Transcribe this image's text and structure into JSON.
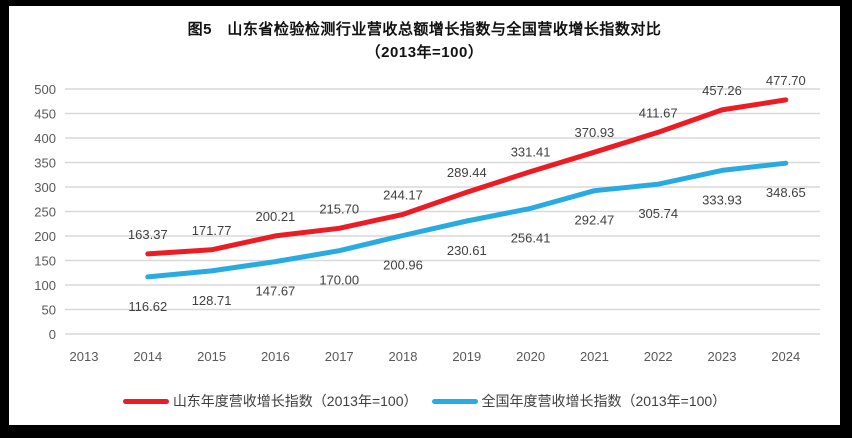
{
  "title": {
    "line1": "图5　山东省检验检测行业营收总额增长指数与全国营收增长指数对比",
    "line2": "（2013年=100）"
  },
  "colors": {
    "background_frame": "#000000",
    "canvas": "#ffffff",
    "gridline": "#d9d9d9",
    "tick_text": "#595959",
    "data_label_text": "#404040",
    "shandong_red": "#ec1c24",
    "national_blue": "#29abe2"
  },
  "chart_data": {
    "type": "line",
    "title": "图5　山东省检验检测行业营收总额增长指数与全国营收增长指数对比（2013年=100）",
    "categories": [
      "2013",
      "2014",
      "2015",
      "2016",
      "2017",
      "2018",
      "2019",
      "2020",
      "2021",
      "2022",
      "2023",
      "2024"
    ],
    "yticks": [
      0,
      50,
      100,
      150,
      200,
      250,
      300,
      350,
      400,
      450,
      500
    ],
    "ylim": [
      0,
      500
    ],
    "grid": "horizontal",
    "legend_position": "bottom",
    "data_labels": true,
    "series": [
      {
        "name": "山东年度营收增长指数（2013年=100）",
        "color": "#ec1c24",
        "label_position": "above",
        "values": [
          null,
          163.37,
          171.77,
          200.21,
          215.7,
          244.17,
          289.44,
          331.41,
          370.93,
          411.67,
          457.26,
          477.7
        ],
        "labels": [
          null,
          "163.37",
          "171.77",
          "200.21",
          "215.70",
          "244.17",
          "289.44",
          "331.41",
          "370.93",
          "411.67",
          "457.26",
          "477.70"
        ]
      },
      {
        "name": "全国年度营收增长指数（2013年=100）",
        "color": "#29abe2",
        "label_position": "below",
        "values": [
          null,
          116.62,
          128.71,
          147.67,
          170.0,
          200.96,
          230.61,
          256.41,
          292.47,
          305.74,
          333.93,
          348.65
        ],
        "labels": [
          null,
          "116.62",
          "128.71",
          "147.67",
          "170.00",
          "200.96",
          "230.61",
          "256.41",
          "292.47",
          "305.74",
          "333.93",
          "348.65"
        ]
      }
    ]
  }
}
